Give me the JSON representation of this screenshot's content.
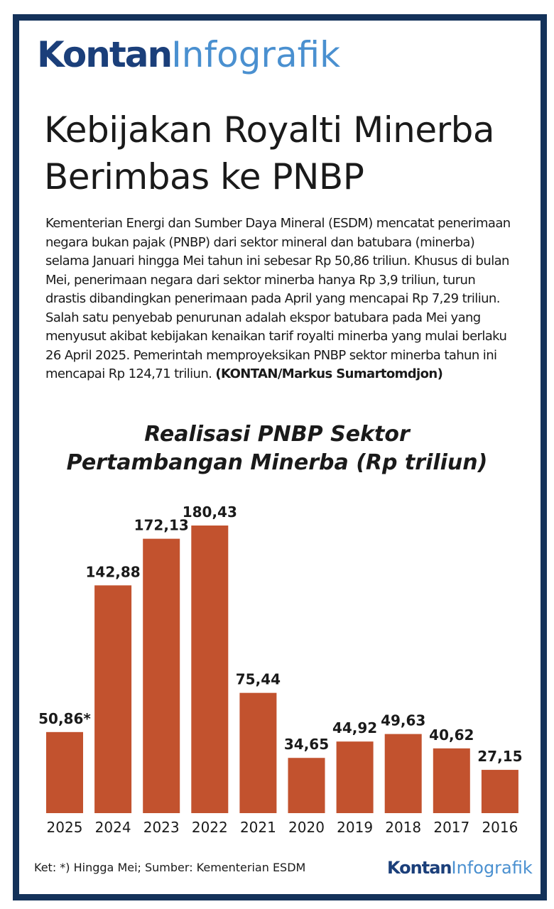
{
  "brand": {
    "part1": "Kontan",
    "part2": "Infografik"
  },
  "headline": "Kebijakan Royalti Minerba Berimbas ke PNBP",
  "paragraph": "Kementerian Energi dan Sumber Daya Mineral (ESDM) mencatat penerimaan negara bukan pajak (PNBP) dari sektor mineral dan batubara (minerba) selama Januari hingga Mei tahun ini sebesar Rp 50,86 triliun. Khusus di bulan Mei, penerimaan negara dari sektor minerba hanya Rp 3,9 triliun, turun drastis dibandingkan penerimaan pada April yang mencapai Rp 7,29 triliun. Salah satu penyebab penurunan adalah ekspor batubara pada Mei yang menyusut akibat kebijakan kenaikan tarif royalti minerba yang mulai berlaku 26 April 2025. Pemerintah memproyeksikan PNBP sektor minerba tahun ini mencapai Rp 124,71 triliun.",
  "credit": "(KONTAN/Markus Sumartomdjon)",
  "footnote": "Ket: *) Hingga Mei; Sumber: Kementerian ESDM",
  "chart_data": {
    "type": "bar",
    "title": "Realisasi PNBP Sektor Pertambangan Minerba (Rp triliun)",
    "categories": [
      "2025",
      "2024",
      "2023",
      "2022",
      "2021",
      "2020",
      "2019",
      "2018",
      "2017",
      "2016"
    ],
    "values": [
      50.86,
      142.88,
      172.13,
      180.43,
      75.44,
      34.65,
      44.92,
      49.63,
      40.62,
      27.15
    ],
    "value_labels": [
      "50,86*",
      "142,88",
      "172,13",
      "180,43",
      "75,44",
      "34,65",
      "44,92",
      "49,63",
      "40,62",
      "27,15"
    ],
    "color": "#c2522e"
  }
}
